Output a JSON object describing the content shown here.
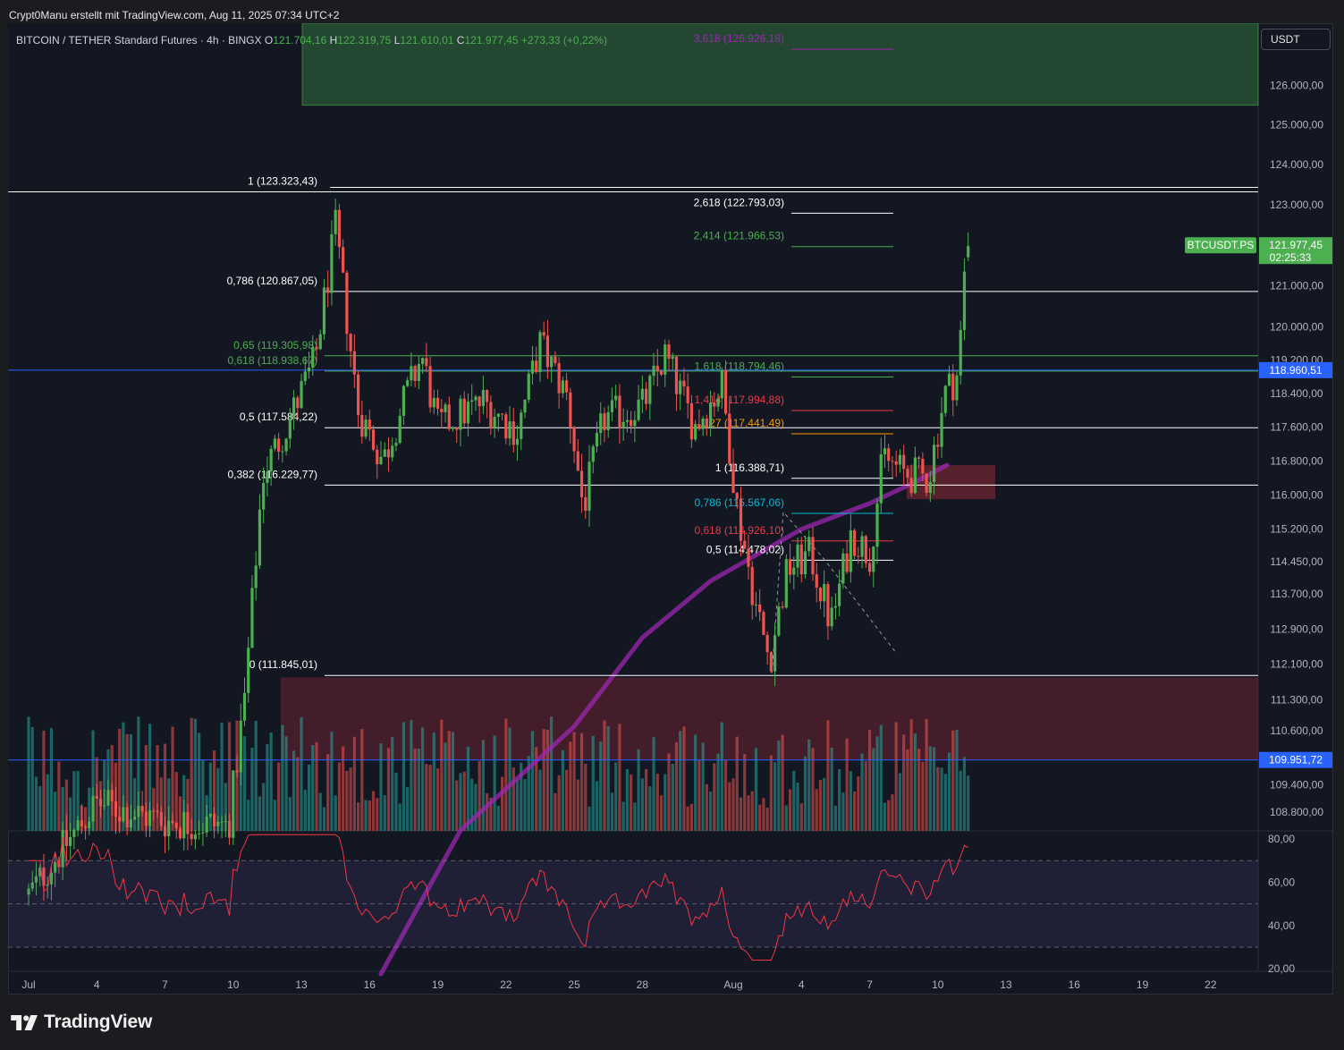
{
  "attribution": "Crypt0Manu erstellt mit TradingView.com, Aug 11, 2025 07:34 UTC+2",
  "header": {
    "symbol": "BITCOIN / TETHER Standard Futures · 4h · BINGX",
    "o_label": "O",
    "o_value": "121.704,16",
    "h_label": "H",
    "h_value": "122.319,75",
    "l_label": "L",
    "l_value": "121.610,01",
    "c_label": "C",
    "c_value": "121.977,45",
    "change": "+273,33 (+0,22%)"
  },
  "currency_button": "USDT",
  "price_badge": {
    "symbol": "BTCUSDT.PS",
    "price": "121.977,45",
    "countdown": "02:25:33",
    "color": "#4caf50"
  },
  "line_badges": [
    {
      "value": "118.960,51",
      "color": "#2962ff"
    },
    {
      "value": "109.951,72",
      "color": "#2962ff"
    }
  ],
  "logo_text": "TradingView",
  "colors": {
    "background": "#131722",
    "up": "#26a69a",
    "up_candle": "#4caf50",
    "down": "#ef5350",
    "ma": "#9c27b0",
    "rsi": "#f23645",
    "blue_line": "#2962ff"
  },
  "chart_data": {
    "type": "candlestick",
    "timeframe": "4h",
    "y_axis": {
      "ticks": [
        "126.000,00",
        "125.000,00",
        "124.000,00",
        "123.000,00",
        "121.000,00",
        "120.000,00",
        "119.200,00",
        "118.400,00",
        "117.600,00",
        "116.800,00",
        "116.000,00",
        "115.200,00",
        "114.450,00",
        "113.700,00",
        "112.900,00",
        "112.100,00",
        "111.300,00",
        "110.600,00",
        "109.400,00",
        "108.800,00"
      ],
      "tick_values": [
        126000,
        125000,
        124000,
        123000,
        121000,
        120000,
        119200,
        118400,
        117600,
        116800,
        116000,
        115200,
        114450,
        113700,
        112900,
        112100,
        111300,
        110600,
        109400,
        108800
      ],
      "scale": "log"
    },
    "x_axis": {
      "ticks": [
        "Jul",
        "4",
        "7",
        "10",
        "13",
        "16",
        "19",
        "22",
        "25",
        "28",
        "Aug",
        "4",
        "7",
        "10",
        "13",
        "16",
        "19",
        "22"
      ],
      "tick_days": [
        0,
        3,
        6,
        9,
        12,
        15,
        18,
        21,
        24,
        27,
        31,
        34,
        37,
        40,
        43,
        46,
        49,
        52
      ]
    },
    "ohlc_day_anchors": [
      {
        "day": 0.0,
        "close": 107000
      },
      {
        "day": 3.0,
        "close": 109000
      },
      {
        "day": 6.0,
        "close": 108600
      },
      {
        "day": 8.8,
        "close": 108500
      },
      {
        "day": 9.5,
        "close": 111300
      },
      {
        "day": 10.3,
        "close": 116500
      },
      {
        "day": 11.5,
        "close": 117800
      },
      {
        "day": 12.6,
        "close": 119200
      },
      {
        "day": 13.5,
        "close": 122400
      },
      {
        "day": 14.5,
        "close": 118000
      },
      {
        "day": 15.6,
        "close": 116800
      },
      {
        "day": 16.5,
        "close": 118200
      },
      {
        "day": 17.3,
        "close": 119300
      },
      {
        "day": 18.0,
        "close": 117600
      },
      {
        "day": 20.0,
        "close": 118200
      },
      {
        "day": 21.5,
        "close": 117500
      },
      {
        "day": 22.5,
        "close": 119600
      },
      {
        "day": 23.7,
        "close": 118300
      },
      {
        "day": 24.4,
        "close": 115700
      },
      {
        "day": 25.3,
        "close": 117800
      },
      {
        "day": 27.0,
        "close": 118100
      },
      {
        "day": 28.0,
        "close": 119300
      },
      {
        "day": 29.3,
        "close": 117600
      },
      {
        "day": 30.5,
        "close": 118600
      },
      {
        "day": 31.2,
        "close": 115600
      },
      {
        "day": 32.0,
        "close": 113400
      },
      {
        "day": 32.6,
        "close": 112200
      },
      {
        "day": 33.4,
        "close": 114300
      },
      {
        "day": 34.4,
        "close": 114600
      },
      {
        "day": 35.3,
        "close": 113000
      },
      {
        "day": 36.2,
        "close": 115100
      },
      {
        "day": 37.0,
        "close": 114600
      },
      {
        "day": 37.6,
        "close": 116900
      },
      {
        "day": 38.5,
        "close": 116500
      },
      {
        "day": 39.6,
        "close": 116400
      },
      {
        "day": 40.3,
        "close": 118400
      },
      {
        "day": 40.9,
        "close": 118900
      },
      {
        "day": 41.2,
        "close": 121500
      },
      {
        "day": 41.4,
        "close": 121977
      }
    ],
    "last": {
      "open": 121704.16,
      "high": 122319.75,
      "low": 121610.01,
      "close": 121977.45
    },
    "ma_anchors": [
      {
        "day": 15.5,
        "value": 105300
      },
      {
        "day": 19.0,
        "value": 108400
      },
      {
        "day": 24.0,
        "value": 110700
      },
      {
        "day": 27.0,
        "value": 112700
      },
      {
        "day": 30.0,
        "value": 114000
      },
      {
        "day": 34.0,
        "value": 115200
      },
      {
        "day": 37.0,
        "value": 115800
      },
      {
        "day": 39.0,
        "value": 116300
      },
      {
        "day": 40.4,
        "value": 116700
      }
    ],
    "fib_left": {
      "levels": [
        {
          "label": "1 (123.323,43)",
          "value": 123323.43,
          "color": "#ffffff"
        },
        {
          "label": "0,786 (120.867,05)",
          "value": 120867.05,
          "color": "#ffffff"
        },
        {
          "label": "0,65 (119.305,98)",
          "value": 119305.98,
          "color": "#4caf50"
        },
        {
          "label": "0,618 (118.938,67)",
          "value": 118938.67,
          "color": "#4caf50"
        },
        {
          "label": "0,5 (117.584,22)",
          "value": 117584.22,
          "color": "#ffffff"
        },
        {
          "label": "0,382 (116.229,77)",
          "value": 116229.77,
          "color": "#ffffff"
        },
        {
          "label": "0 (111.845,01)",
          "value": 111845.01,
          "color": "#ffffff"
        }
      ]
    },
    "fib_right": {
      "levels": [
        {
          "label": "3,618 (126.926,18)",
          "value": 126926.18,
          "color": "#9c27b0"
        },
        {
          "label": "2,618 (122.793,03)",
          "value": 122793.03,
          "color": "#ffffff"
        },
        {
          "label": "2,414 (121.966,53)",
          "value": 121966.53,
          "color": "#4caf50"
        },
        {
          "label": "1,618 (118.794,46)",
          "value": 118794.46,
          "color": "#4caf50"
        },
        {
          "label": "1,414 (117.994,88)",
          "value": 117994.88,
          "color": "#f23645"
        },
        {
          "label": "1,27 (117.441,49)",
          "value": 117441.49,
          "color": "#ff9800"
        },
        {
          "label": "1 (116.388,71)",
          "value": 116388.71,
          "color": "#ffffff"
        },
        {
          "label": "0,786 (115.567,06)",
          "value": 115567.06,
          "color": "#00bcd4"
        },
        {
          "label": "0,618 (114.926,10)",
          "value": 114926.1,
          "color": "#f23645"
        },
        {
          "label": "0,5 (114.478,02)",
          "value": 114478.02,
          "color": "#ffffff"
        }
      ]
    },
    "horizontal_lines": [
      118960.51,
      109951.72
    ],
    "zones": [
      {
        "kind": "target",
        "from": 125500,
        "to": 128500,
        "color": "#4caf50"
      },
      {
        "kind": "demand",
        "from": 109951.72,
        "to": 111800,
        "color": "#f23645"
      },
      {
        "kind": "fvg",
        "from": 115900,
        "to": 116700,
        "color": "#f23645"
      }
    ],
    "rsi": {
      "ticks": [
        "80,00",
        "60,00",
        "40,00",
        "20,00"
      ],
      "tick_values": [
        80,
        60,
        40,
        20
      ],
      "upper": 70,
      "middle": 50,
      "lower": 30,
      "last": 76
    },
    "volume": {
      "visible": true
    }
  }
}
